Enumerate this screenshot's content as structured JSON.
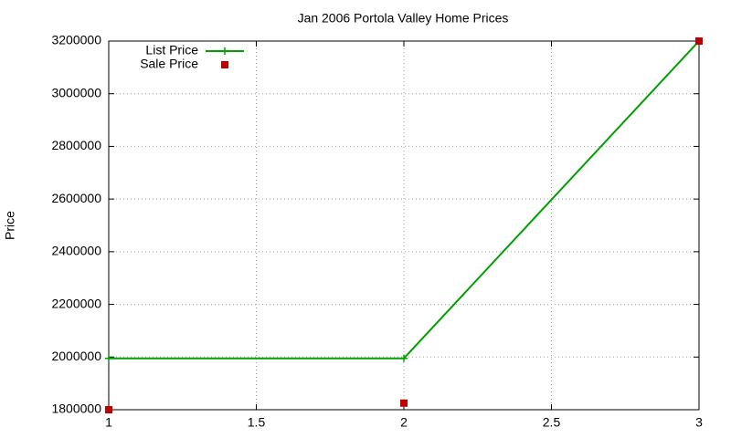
{
  "chart_data": {
    "type": "line",
    "title": "Jan 2006 Portola Valley Home Prices",
    "y_label": "Price",
    "x": [
      1,
      2,
      3
    ],
    "series": [
      {
        "name": "List Price",
        "color": "#00a000",
        "mode": "lines+markers",
        "values": [
          1995000,
          1995000,
          3200000
        ]
      },
      {
        "name": "Sale Price",
        "color": "#c00000",
        "mode": "markers",
        "values": [
          1800000,
          1825000,
          3200000
        ]
      }
    ],
    "xlim": [
      1,
      3
    ],
    "xticks": [
      1,
      1.5,
      2,
      2.5,
      3
    ],
    "ylim": [
      1800000,
      3200000
    ],
    "yticks": [
      1800000,
      2000000,
      2200000,
      2400000,
      2600000,
      2800000,
      3000000,
      3200000
    ],
    "grid": true,
    "legend": "top-left"
  }
}
